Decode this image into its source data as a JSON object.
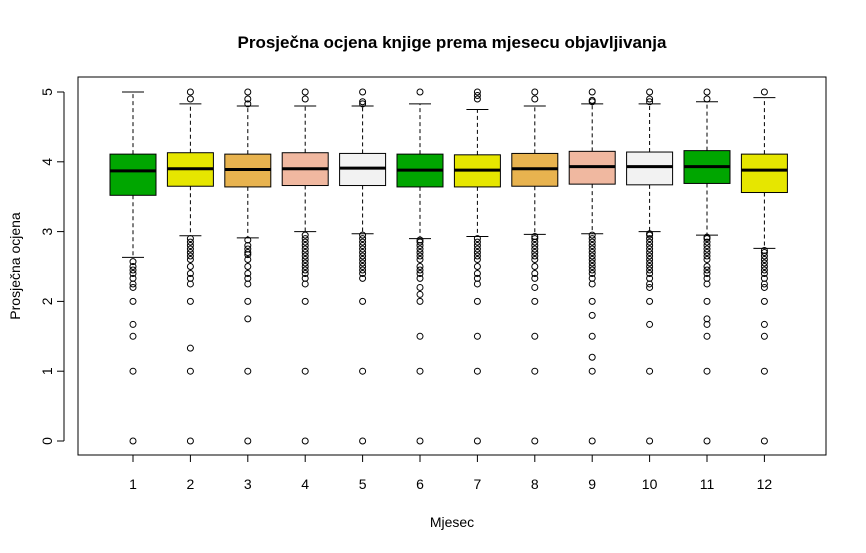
{
  "chart_data": {
    "type": "boxplot",
    "title": "Prosječna ocjena knjige prema mjesecu objavljivanja",
    "xlabel": "Mjesec",
    "ylabel": "Prosječna ocjena",
    "ylim": [
      0,
      5
    ],
    "yticks": [
      0,
      1,
      2,
      3,
      4,
      5
    ],
    "grid": false,
    "categories": [
      "1",
      "2",
      "3",
      "4",
      "5",
      "6",
      "7",
      "8",
      "9",
      "10",
      "11",
      "12"
    ],
    "colors": [
      "#00A600",
      "#E6E600",
      "#E8B34F",
      "#F0B8A0",
      "#F2F2F2",
      "#00A600",
      "#E6E600",
      "#E8B34F",
      "#F0B8A0",
      "#F2F2F2",
      "#00A600",
      "#E6E600"
    ],
    "boxes": [
      {
        "q1": 3.52,
        "median": 3.87,
        "q3": 4.11,
        "whisker_low": 2.63,
        "whisker_high": 5.0,
        "outliers_low": [
          2.57,
          2.5,
          2.45,
          2.4,
          2.33,
          2.25,
          2.2,
          2.0,
          1.67,
          1.5,
          1.0,
          0.0
        ],
        "outliers_high": []
      },
      {
        "q1": 3.65,
        "median": 3.9,
        "q3": 4.13,
        "whisker_low": 2.94,
        "whisker_high": 4.83,
        "outliers_low": [
          2.9,
          2.85,
          2.8,
          2.75,
          2.7,
          2.65,
          2.6,
          2.5,
          2.4,
          2.33,
          2.25,
          2.0,
          1.33,
          1.0,
          0.0
        ],
        "outliers_high": [
          4.9,
          5.0
        ]
      },
      {
        "q1": 3.64,
        "median": 3.89,
        "q3": 4.11,
        "whisker_low": 2.91,
        "whisker_high": 4.8,
        "outliers_low": [
          2.88,
          2.8,
          2.75,
          2.7,
          2.67,
          2.6,
          2.5,
          2.4,
          2.33,
          2.25,
          2.0,
          1.75,
          1.0,
          0.0
        ],
        "outliers_high": [
          4.83,
          4.9,
          5.0
        ]
      },
      {
        "q1": 3.66,
        "median": 3.9,
        "q3": 4.13,
        "whisker_low": 3.0,
        "whisker_high": 4.8,
        "outliers_low": [
          2.95,
          2.9,
          2.85,
          2.8,
          2.75,
          2.7,
          2.65,
          2.6,
          2.55,
          2.5,
          2.45,
          2.4,
          2.33,
          2.25,
          2.0,
          1.0,
          0.0
        ],
        "outliers_high": [
          4.9,
          5.0
        ]
      },
      {
        "q1": 3.66,
        "median": 3.91,
        "q3": 4.12,
        "whisker_low": 2.97,
        "whisker_high": 4.8,
        "outliers_low": [
          2.95,
          2.9,
          2.85,
          2.8,
          2.75,
          2.7,
          2.65,
          2.6,
          2.55,
          2.5,
          2.45,
          2.4,
          2.33,
          2.0,
          1.0,
          0.0
        ],
        "outliers_high": [
          4.83,
          4.86,
          5.0
        ]
      },
      {
        "q1": 3.64,
        "median": 3.88,
        "q3": 4.11,
        "whisker_low": 2.9,
        "whisker_high": 4.83,
        "outliers_low": [
          2.88,
          2.85,
          2.8,
          2.75,
          2.7,
          2.65,
          2.6,
          2.5,
          2.45,
          2.4,
          2.33,
          2.2,
          2.1,
          2.0,
          1.5,
          1.0,
          0.0
        ],
        "outliers_high": [
          5.0
        ]
      },
      {
        "q1": 3.64,
        "median": 3.88,
        "q3": 4.1,
        "whisker_low": 2.93,
        "whisker_high": 4.75,
        "outliers_low": [
          2.9,
          2.85,
          2.8,
          2.75,
          2.7,
          2.65,
          2.6,
          2.5,
          2.4,
          2.33,
          2.25,
          2.0,
          1.5,
          1.0,
          0.0
        ],
        "outliers_high": [
          4.9,
          4.95,
          5.0
        ]
      },
      {
        "q1": 3.65,
        "median": 3.9,
        "q3": 4.12,
        "whisker_low": 2.96,
        "whisker_high": 4.8,
        "outliers_low": [
          2.93,
          2.9,
          2.85,
          2.8,
          2.75,
          2.7,
          2.65,
          2.6,
          2.5,
          2.4,
          2.33,
          2.2,
          2.0,
          1.5,
          1.0,
          0.0
        ],
        "outliers_high": [
          4.9,
          5.0
        ]
      },
      {
        "q1": 3.68,
        "median": 3.93,
        "q3": 4.15,
        "whisker_low": 2.97,
        "whisker_high": 4.83,
        "outliers_low": [
          2.95,
          2.9,
          2.85,
          2.8,
          2.75,
          2.7,
          2.65,
          2.6,
          2.55,
          2.5,
          2.45,
          2.4,
          2.33,
          2.25,
          2.0,
          1.8,
          1.5,
          1.2,
          1.0,
          0.0
        ],
        "outliers_high": [
          4.86,
          4.88,
          5.0
        ]
      },
      {
        "q1": 3.67,
        "median": 3.93,
        "q3": 4.14,
        "whisker_low": 3.0,
        "whisker_high": 4.83,
        "outliers_low": [
          2.97,
          2.95,
          2.9,
          2.85,
          2.8,
          2.75,
          2.7,
          2.65,
          2.6,
          2.55,
          2.5,
          2.45,
          2.4,
          2.33,
          2.25,
          2.2,
          2.0,
          1.67,
          1.0,
          0.0
        ],
        "outliers_high": [
          4.86,
          4.9,
          5.0
        ]
      },
      {
        "q1": 3.69,
        "median": 3.93,
        "q3": 4.16,
        "whisker_low": 2.95,
        "whisker_high": 4.86,
        "outliers_low": [
          2.92,
          2.9,
          2.85,
          2.8,
          2.75,
          2.7,
          2.65,
          2.6,
          2.5,
          2.45,
          2.4,
          2.33,
          2.25,
          2.0,
          1.75,
          1.67,
          1.5,
          1.0,
          0.0
        ],
        "outliers_high": [
          4.9,
          5.0
        ]
      },
      {
        "q1": 3.56,
        "median": 3.88,
        "q3": 4.11,
        "whisker_low": 2.76,
        "whisker_high": 4.92,
        "outliers_low": [
          2.73,
          2.7,
          2.65,
          2.6,
          2.55,
          2.5,
          2.45,
          2.4,
          2.33,
          2.25,
          2.2,
          2.0,
          1.67,
          1.5,
          1.0,
          0.0
        ],
        "outliers_high": [
          5.0
        ]
      }
    ]
  }
}
